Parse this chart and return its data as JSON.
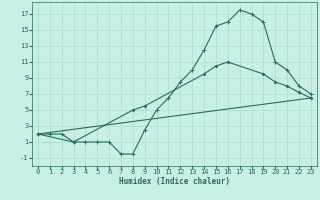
{
  "xlabel": "Humidex (Indice chaleur)",
  "background_color": "#c8eee8",
  "grid_color": "#aaddcc",
  "line_color": "#2a6b5a",
  "xlim": [
    -0.5,
    23.5
  ],
  "ylim": [
    -2.0,
    18.5
  ],
  "xticks": [
    0,
    1,
    2,
    3,
    4,
    5,
    6,
    7,
    8,
    9,
    10,
    11,
    12,
    13,
    14,
    15,
    16,
    17,
    18,
    19,
    20,
    21,
    22,
    23
  ],
  "yticks": [
    -1,
    1,
    3,
    5,
    7,
    9,
    11,
    13,
    15,
    17
  ],
  "line1_x": [
    0,
    1,
    2,
    3,
    4,
    5,
    6,
    7,
    8,
    9,
    10,
    11,
    12,
    13,
    14,
    15,
    16,
    17,
    18,
    19,
    20,
    21,
    22,
    23
  ],
  "line1_y": [
    2,
    2,
    2,
    1,
    1,
    1,
    1,
    -0.5,
    -0.5,
    2.5,
    5,
    6.5,
    8.5,
    10,
    12.5,
    15.5,
    16,
    17.5,
    17,
    16,
    11,
    10,
    8,
    7
  ],
  "line2_x": [
    0,
    3,
    8,
    9,
    14,
    15,
    16,
    19,
    20,
    21,
    22,
    23
  ],
  "line2_y": [
    2,
    1,
    5,
    5.5,
    9.5,
    10.5,
    11,
    9.5,
    8.5,
    8,
    7.2,
    6.5
  ],
  "line3_x": [
    0,
    23
  ],
  "line3_y": [
    2,
    6.5
  ],
  "tick_fontsize": 5.0,
  "xlabel_fontsize": 5.5,
  "linewidth": 0.8,
  "marker_size": 2.5
}
